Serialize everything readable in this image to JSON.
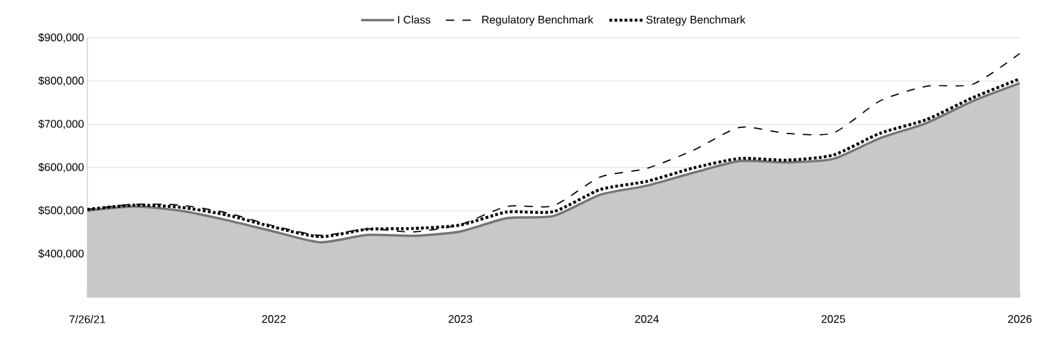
{
  "chart_data": {
    "type": "line",
    "categories": [
      "7/26/21",
      null,
      null,
      null,
      "2022",
      null,
      null,
      null,
      "2023",
      null,
      null,
      null,
      "2024",
      null,
      null,
      null,
      "2025",
      null,
      null,
      null,
      "2026"
    ],
    "series": [
      {
        "name": "I Class",
        "type": "area",
        "color": "#767676",
        "line_style": "solid",
        "values": [
          500000,
          510000,
          500000,
          478000,
          452000,
          427000,
          444000,
          442000,
          452000,
          483000,
          488000,
          537000,
          558000,
          588000,
          615000,
          612000,
          620000,
          668000,
          703000,
          754000,
          795000
        ]
      },
      {
        "name": "Regulatory Benchmark",
        "color": "#000000",
        "line_style": "dashed",
        "values": [
          503000,
          515000,
          513000,
          495000,
          465000,
          443000,
          458000,
          451000,
          468000,
          510000,
          512000,
          578000,
          598000,
          640000,
          693000,
          679000,
          680000,
          754000,
          788000,
          793000,
          864000
        ]
      },
      {
        "name": "Strategy Benchmark",
        "color": "#000000",
        "line_style": "dotted",
        "values": [
          503000,
          513000,
          508000,
          490000,
          462000,
          440000,
          457000,
          459000,
          467000,
          497000,
          498000,
          549000,
          568000,
          599000,
          621000,
          617000,
          629000,
          679000,
          711000,
          762000,
          805000
        ]
      }
    ],
    "ylim": [
      300000,
      900000
    ],
    "yticks": [
      {
        "value": 400000,
        "label": "$400,000"
      },
      {
        "value": 500000,
        "label": "$500,000"
      },
      {
        "value": 600000,
        "label": "$600,000"
      },
      {
        "value": 700000,
        "label": "$700,000"
      },
      {
        "value": 800000,
        "label": "$800,000"
      },
      {
        "value": 900000,
        "label": "$900,000"
      }
    ],
    "grid": "y",
    "legend": "top"
  }
}
